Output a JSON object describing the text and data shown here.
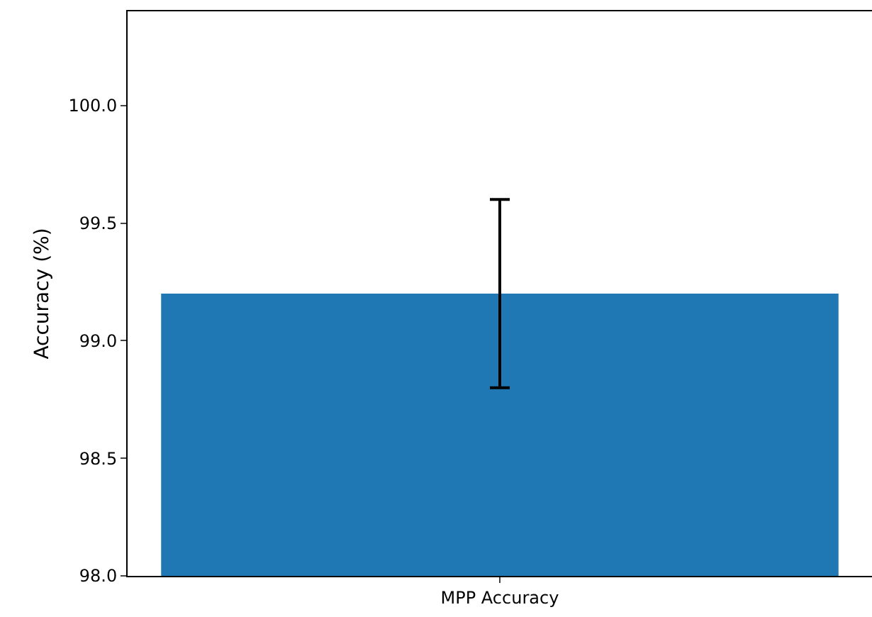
{
  "chart_data": {
    "type": "bar",
    "ylabel": "Accuracy (%)",
    "categories": [
      "MPP Accuracy"
    ],
    "values": [
      99.2
    ],
    "errors": [
      0.4
    ],
    "color": "#1f77b4",
    "ylim": [
      98.0,
      100.4
    ],
    "yticks": [
      {
        "value": 98,
        "label": "98.0"
      },
      {
        "value": 98.5,
        "label": "98.5"
      },
      {
        "value": 99,
        "label": "99.0"
      },
      {
        "value": 99.5,
        "label": "99.5"
      },
      {
        "value": 100,
        "label": "100.0"
      }
    ],
    "grid": false
  }
}
